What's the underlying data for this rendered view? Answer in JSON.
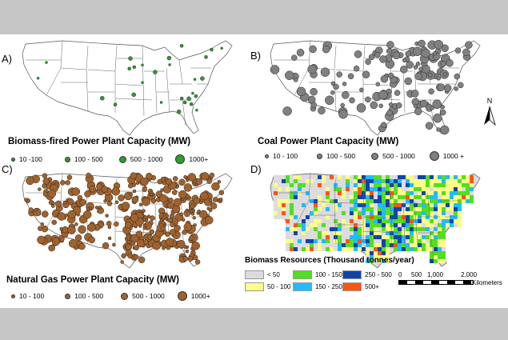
{
  "panels": [
    {
      "letter": "A)",
      "title": "Biomass-fired Power Plant Capacity (MW)",
      "legend": [
        "10 -100",
        "100 - 500",
        "500 - 1000",
        "1000+"
      ],
      "marker_color": "#2e9e2e"
    },
    {
      "letter": "B)",
      "title": "Coal Power Plant Capacity (MW)",
      "legend": [
        "10 - 100",
        "100 - 500",
        "500 - 1000",
        "1000 +"
      ],
      "marker_color": "#808080"
    },
    {
      "letter": "C)",
      "title": "Natural Gas Power Plant Capacity (MW)",
      "legend": [
        "10 - 100",
        "100 - 500",
        "500 - 1000",
        "1000+"
      ],
      "marker_color": "#a0622d"
    },
    {
      "letter": "D)",
      "title": "Biomass Resources (Thousand tonnes/year)",
      "legend_classes": [
        {
          "label": "< 50",
          "color": "#dcdcdc"
        },
        {
          "label": "50 - 100",
          "color": "#ffff88"
        },
        {
          "label": "100 - 150",
          "color": "#55dd22"
        },
        {
          "label": "150 - 250",
          "color": "#22bbff"
        },
        {
          "label": "250 - 500",
          "color": "#1144aa"
        },
        {
          "label": "500+",
          "color": "#ff5511"
        }
      ]
    }
  ],
  "north_arrow": {
    "label": "N"
  },
  "scale_bar": {
    "ticks": [
      "0",
      "500",
      "1,000",
      "2,000"
    ],
    "unit": "Kilometers"
  }
}
